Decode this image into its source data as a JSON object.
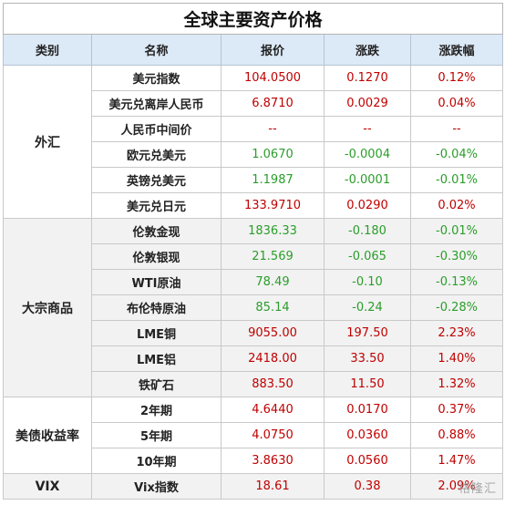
{
  "title": "全球主要资产价格",
  "headers": [
    "类别",
    "名称",
    "报价",
    "涨跌",
    "涨跌幅"
  ],
  "groups": [
    {
      "category": "外汇",
      "rows": [
        {
          "name": "美元指数",
          "price": "104.0500",
          "change": "0.1270",
          "pct": "0.12%",
          "dir": "up"
        },
        {
          "name": "美元兑离岸人民币",
          "price": "6.8710",
          "change": "0.0029",
          "pct": "0.04%",
          "dir": "up"
        },
        {
          "name": "人民币中间价",
          "price": "--",
          "change": "--",
          "pct": "--",
          "dir": "flat"
        },
        {
          "name": "欧元兑美元",
          "price": "1.0670",
          "change": "-0.0004",
          "pct": "-0.04%",
          "dir": "down"
        },
        {
          "name": "英镑兑美元",
          "price": "1.1987",
          "change": "-0.0001",
          "pct": "-0.01%",
          "dir": "down"
        },
        {
          "name": "美元兑日元",
          "price": "133.9710",
          "change": "0.0290",
          "pct": "0.02%",
          "dir": "up"
        }
      ]
    },
    {
      "category": "大宗商品",
      "rows": [
        {
          "name": "伦敦金现",
          "price": "1836.33",
          "change": "-0.180",
          "pct": "-0.01%",
          "dir": "down"
        },
        {
          "name": "伦敦银现",
          "price": "21.569",
          "change": "-0.065",
          "pct": "-0.30%",
          "dir": "down"
        },
        {
          "name": "WTI原油",
          "price": "78.49",
          "change": "-0.10",
          "pct": "-0.13%",
          "dir": "down"
        },
        {
          "name": "布伦特原油",
          "price": "85.14",
          "change": "-0.24",
          "pct": "-0.28%",
          "dir": "down"
        },
        {
          "name": "LME铜",
          "price": "9055.00",
          "change": "197.50",
          "pct": "2.23%",
          "dir": "up"
        },
        {
          "name": "LME铝",
          "price": "2418.00",
          "change": "33.50",
          "pct": "1.40%",
          "dir": "up"
        },
        {
          "name": "铁矿石",
          "price": "883.50",
          "change": "11.50",
          "pct": "1.32%",
          "dir": "up"
        }
      ]
    },
    {
      "category": "美债收益率",
      "rows": [
        {
          "name": "2年期",
          "price": "4.6440",
          "change": "0.0170",
          "pct": "0.37%",
          "dir": "up"
        },
        {
          "name": "5年期",
          "price": "4.0750",
          "change": "0.0360",
          "pct": "0.88%",
          "dir": "up"
        },
        {
          "name": "10年期",
          "price": "3.8630",
          "change": "0.0560",
          "pct": "1.47%",
          "dir": "up"
        }
      ]
    },
    {
      "category": "VIX",
      "rows": [
        {
          "name": "Vix指数",
          "price": "18.61",
          "change": "0.38",
          "pct": "2.09%",
          "dir": "up"
        }
      ]
    }
  ],
  "colors": {
    "up": "#c00000",
    "down": "#2a9d2a",
    "header_bg": "#dce9f6",
    "alt_bg": "#f2f2f2"
  },
  "watermark": "格隆汇"
}
